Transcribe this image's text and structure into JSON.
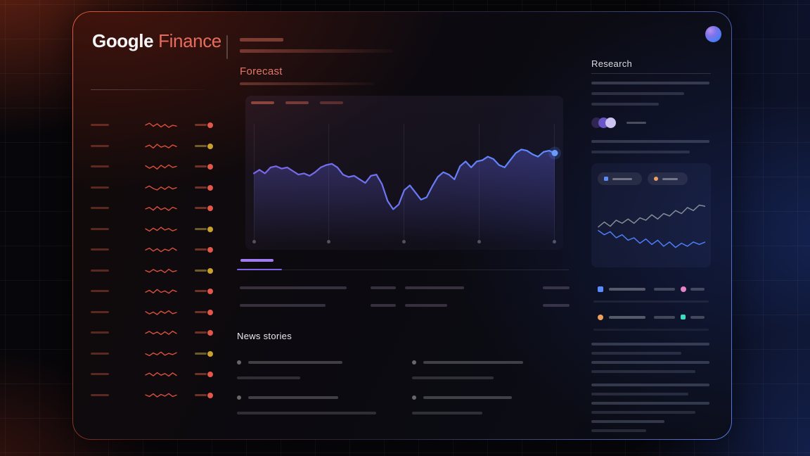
{
  "app": {
    "logo_part1": "Google",
    "logo_part2": "Finance"
  },
  "main": {
    "forecast_title": "Forecast",
    "news_title": "News stories"
  },
  "research": {
    "title": "Research"
  },
  "colors": {
    "accent_red": "#e86c5d",
    "forecast_heading": "#e0786a",
    "text_light": "#e8eaed",
    "text_muted": "#dadce0",
    "sparkline_red": "#d9503c",
    "status_red": "#e2574a",
    "status_yellow": "#c9a22c",
    "chart_purple": "#7d63e6",
    "chart_blue": "#5b8cff",
    "tab_purple": "#9f7df0",
    "mini_gray": "#9aa0a6",
    "mini_blue": "#4e7cf6",
    "legend_pink": "#e583c8",
    "legend_orange": "#f0a05c",
    "legend_teal": "#3ddbc4",
    "venn_dark": "#2e2550",
    "venn_mid": "#6a55c8",
    "venn_light": "#cdc3f0"
  },
  "watchlist": {
    "rows": [
      {
        "status": "red",
        "spark": [
          52,
          70,
          40,
          64,
          34,
          58,
          30,
          50,
          42
        ]
      },
      {
        "status": "yellow",
        "spark": [
          46,
          62,
          34,
          70,
          42,
          56,
          36,
          64,
          48
        ]
      },
      {
        "status": "red",
        "spark": [
          60,
          36,
          56,
          28,
          64,
          40,
          68,
          44,
          54
        ]
      },
      {
        "status": "red",
        "spark": [
          50,
          68,
          44,
          30,
          58,
          36,
          62,
          40,
          52
        ]
      },
      {
        "status": "red",
        "spark": [
          44,
          58,
          32,
          66,
          38,
          54,
          30,
          60,
          46
        ]
      },
      {
        "status": "yellow",
        "spark": [
          56,
          34,
          62,
          40,
          70,
          44,
          58,
          36,
          50
        ]
      },
      {
        "status": "red",
        "spark": [
          48,
          66,
          38,
          60,
          32,
          56,
          42,
          68,
          46
        ]
      },
      {
        "status": "yellow",
        "spark": [
          54,
          38,
          64,
          44,
          58,
          34,
          66,
          42,
          52
        ]
      },
      {
        "status": "red",
        "spark": [
          42,
          60,
          34,
          68,
          40,
          54,
          32,
          62,
          48
        ]
      },
      {
        "status": "red",
        "spark": [
          58,
          36,
          54,
          30,
          62,
          42,
          66,
          38,
          50
        ]
      },
      {
        "status": "red",
        "spark": [
          46,
          64,
          40,
          58,
          34,
          60,
          36,
          66,
          44
        ]
      },
      {
        "status": "yellow",
        "spark": [
          52,
          34,
          60,
          42,
          68,
          38,
          56,
          44,
          62
        ]
      },
      {
        "status": "red",
        "spark": [
          44,
          62,
          36,
          66,
          42,
          58,
          34,
          64,
          40
        ]
      },
      {
        "status": "red",
        "spark": [
          56,
          40,
          66,
          36,
          60,
          44,
          68,
          40,
          54
        ]
      }
    ]
  },
  "chart_data": [
    {
      "id": "forecast-chart",
      "type": "line",
      "title": "Forecast",
      "xlabel": "",
      "ylabel": "",
      "ylim": [
        0,
        100
      ],
      "grid": "vertical-only",
      "x_gridline_count": 5,
      "legend_position": "none",
      "endpoint_marker": true,
      "series": [
        {
          "name": "forecast-line",
          "color_start": "#7d63e6",
          "color_end": "#5b8cff",
          "values": [
            58,
            61,
            58,
            63,
            64,
            62,
            63,
            60,
            57,
            58,
            56,
            59,
            63,
            65,
            66,
            63,
            57,
            55,
            56,
            53,
            50,
            56,
            57,
            49,
            35,
            28,
            32,
            44,
            48,
            42,
            36,
            38,
            47,
            55,
            59,
            57,
            53,
            64,
            68,
            63,
            68,
            69,
            72,
            70,
            65,
            63,
            69,
            75,
            78,
            77,
            74,
            72,
            76,
            77,
            75
          ]
        }
      ]
    },
    {
      "id": "research-mini-chart",
      "type": "line",
      "title": "",
      "ylim": [
        0,
        100
      ],
      "grid": "off",
      "legend_position": "none",
      "series": [
        {
          "name": "gray-line",
          "color": "#9aa0a6",
          "values": [
            53,
            61,
            54,
            64,
            59,
            66,
            59,
            68,
            64,
            73,
            66,
            75,
            71,
            80,
            75,
            85,
            80,
            89,
            87
          ]
        },
        {
          "name": "blue-line",
          "color": "#4e7cf6",
          "values": [
            47,
            40,
            45,
            35,
            40,
            31,
            35,
            26,
            33,
            24,
            31,
            21,
            28,
            19,
            26,
            21,
            28,
            24,
            28
          ]
        }
      ]
    }
  ]
}
